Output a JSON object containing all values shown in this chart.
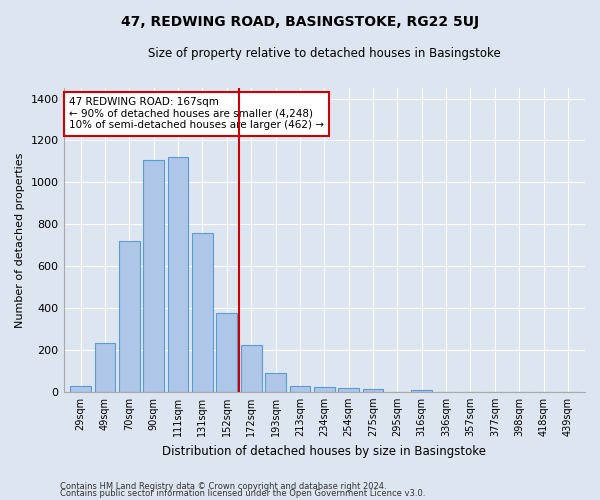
{
  "title": "47, REDWING ROAD, BASINGSTOKE, RG22 5UJ",
  "subtitle": "Size of property relative to detached houses in Basingstoke",
  "xlabel": "Distribution of detached houses by size in Basingstoke",
  "ylabel": "Number of detached properties",
  "footer_line1": "Contains HM Land Registry data © Crown copyright and database right 2024.",
  "footer_line2": "Contains public sector information licensed under the Open Government Licence v3.0.",
  "categories": [
    "29sqm",
    "49sqm",
    "70sqm",
    "90sqm",
    "111sqm",
    "131sqm",
    "152sqm",
    "172sqm",
    "193sqm",
    "213sqm",
    "234sqm",
    "254sqm",
    "275sqm",
    "295sqm",
    "316sqm",
    "336sqm",
    "357sqm",
    "377sqm",
    "398sqm",
    "418sqm",
    "439sqm"
  ],
  "values": [
    30,
    235,
    720,
    1105,
    1120,
    760,
    375,
    225,
    90,
    30,
    25,
    20,
    15,
    0,
    10,
    0,
    0,
    0,
    0,
    0,
    0
  ],
  "bar_color": "#aec6e8",
  "bar_edge_color": "#5b9bd5",
  "bg_color": "#dde5f0",
  "grid_color": "#ffffff",
  "vline_x": 6.5,
  "vline_color": "#cc0000",
  "annotation_text": "47 REDWING ROAD: 167sqm\n← 90% of detached houses are smaller (4,248)\n10% of semi-detached houses are larger (462) →",
  "annotation_box_color": "#cc0000",
  "annotation_box_fill": "#ffffff",
  "ylim": [
    0,
    1450
  ],
  "yticks": [
    0,
    200,
    400,
    600,
    800,
    1000,
    1200,
    1400
  ]
}
